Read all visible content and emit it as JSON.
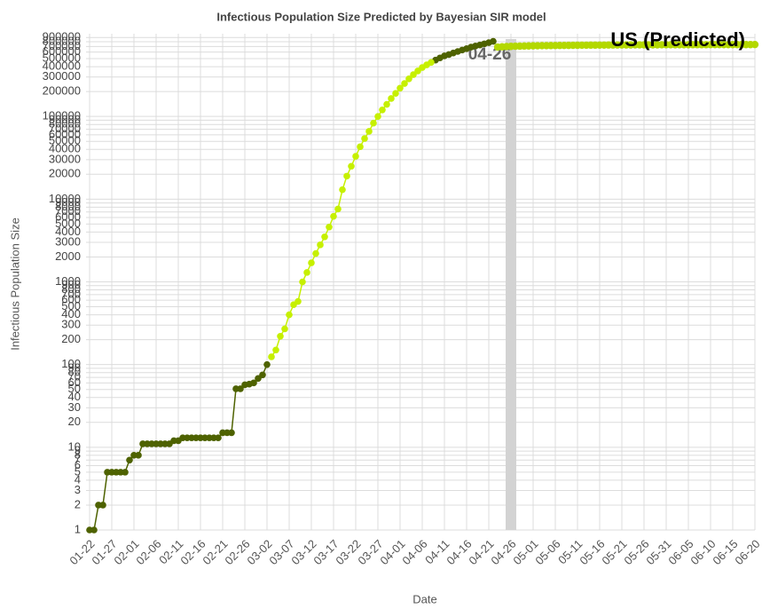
{
  "chart_data": {
    "type": "line",
    "title": "Infectious Population Size Predicted by Bayesian SIR model",
    "x_label": "Date",
    "y_label": "Infectious Population Size",
    "yscale": "log",
    "grid": true,
    "ylim": [
      1,
      1000000
    ],
    "yticks": [
      1,
      2,
      3,
      4,
      5,
      6,
      7,
      8,
      9,
      10,
      20,
      30,
      40,
      50,
      60,
      70,
      80,
      90,
      100,
      200,
      300,
      400,
      500,
      600,
      700,
      800,
      900,
      1000,
      2000,
      3000,
      4000,
      5000,
      6000,
      7000,
      8000,
      9000,
      10000,
      20000,
      30000,
      40000,
      50000,
      60000,
      70000,
      80000,
      90000,
      100000,
      200000,
      300000,
      400000,
      500000,
      600000,
      700000,
      800000,
      900000
    ],
    "categories": [
      "01-22",
      null,
      null,
      null,
      null,
      "01-27",
      null,
      null,
      null,
      null,
      "02-01",
      null,
      null,
      null,
      null,
      "02-06",
      null,
      null,
      null,
      null,
      "02-11",
      null,
      null,
      null,
      null,
      "02-16",
      null,
      null,
      null,
      null,
      "02-21",
      null,
      null,
      null,
      null,
      "02-26",
      null,
      null,
      null,
      null,
      "03-02",
      null,
      null,
      null,
      null,
      "03-07",
      null,
      null,
      null,
      null,
      "03-12",
      null,
      null,
      null,
      null,
      "03-17",
      null,
      null,
      null,
      null,
      "03-22",
      null,
      null,
      null,
      null,
      "03-27",
      null,
      null,
      null,
      null,
      "04-01",
      null,
      null,
      null,
      null,
      "04-06",
      null,
      null,
      null,
      null,
      "04-11",
      null,
      null,
      null,
      null,
      "04-16",
      null,
      null,
      null,
      null,
      "04-21",
      null,
      null,
      null,
      null,
      "04-26",
      null,
      null,
      null,
      null,
      "05-01",
      null,
      null,
      null,
      null,
      "05-06",
      null,
      null,
      null,
      null,
      "05-11",
      null,
      null,
      null,
      null,
      "05-16",
      null,
      null,
      null,
      null,
      "05-21",
      null,
      null,
      null,
      null,
      "05-26",
      null,
      null,
      null,
      null,
      "05-31",
      null,
      null,
      null,
      null,
      "06-05",
      null,
      null,
      null,
      null,
      "06-10",
      null,
      null,
      null,
      null,
      "06-15",
      null,
      null,
      null,
      null,
      "06-20"
    ],
    "series": [
      {
        "color": "#4e6200",
        "values": [
          1,
          1,
          2,
          2,
          5,
          5,
          5,
          5,
          5,
          7,
          8,
          8,
          11,
          11,
          11,
          11,
          11,
          11,
          11,
          12,
          12,
          13,
          13,
          13,
          13,
          13,
          13,
          13,
          13,
          13,
          15,
          15,
          15,
          51,
          51,
          57,
          58,
          60,
          68,
          75,
          100,
          null,
          null,
          null,
          null,
          null,
          null,
          null,
          null,
          null,
          null,
          null,
          null,
          null,
          null,
          null,
          null,
          null,
          null,
          null,
          null,
          null,
          null,
          null,
          null,
          null,
          null,
          null,
          null,
          null,
          null,
          null,
          null,
          null,
          null,
          null,
          null,
          null,
          480000,
          510000,
          540000,
          560000,
          585000,
          610000,
          635000,
          660000,
          690000,
          710000,
          730000,
          755000,
          780000,
          810000,
          null,
          null,
          null,
          null,
          null,
          null,
          null,
          null,
          null,
          null,
          null,
          null,
          null,
          null,
          null,
          null,
          null,
          null,
          null,
          null,
          null,
          null,
          null,
          null,
          null,
          null,
          null,
          null,
          null,
          null,
          null,
          null,
          null,
          null,
          null,
          null,
          null,
          null,
          null,
          null,
          null,
          null,
          null,
          null,
          null,
          null,
          null,
          null,
          null,
          null,
          null,
          null,
          null,
          null,
          null,
          null,
          null,
          null,
          null
        ]
      },
      {
        "color": "#c6f000",
        "values": [
          null,
          null,
          null,
          null,
          null,
          null,
          null,
          null,
          null,
          null,
          null,
          null,
          null,
          null,
          null,
          null,
          null,
          null,
          null,
          null,
          null,
          null,
          null,
          null,
          null,
          null,
          null,
          null,
          null,
          null,
          null,
          null,
          null,
          null,
          null,
          null,
          null,
          null,
          null,
          null,
          null,
          124,
          150,
          220,
          270,
          400,
          530,
          580,
          1000,
          1300,
          1700,
          2200,
          2800,
          3500,
          4600,
          6200,
          7600,
          13000,
          19000,
          25000,
          33000,
          43000,
          54000,
          66000,
          83000,
          100000,
          120000,
          140000,
          165000,
          190000,
          220000,
          250000,
          285000,
          320000,
          355000,
          390000,
          420000,
          450000,
          null,
          null,
          null,
          null,
          null,
          null,
          null,
          null,
          null,
          null,
          null,
          null,
          null,
          null,
          null,
          null,
          null,
          null,
          null,
          null,
          null,
          null,
          null,
          null,
          null,
          null,
          null,
          null,
          null,
          null,
          null,
          null,
          null,
          null,
          null,
          null,
          null,
          null,
          null,
          null,
          null,
          null,
          null,
          null,
          null,
          null,
          null,
          null,
          null,
          null,
          null,
          null,
          null,
          null,
          null,
          null,
          null,
          null,
          null,
          null,
          null,
          null,
          null,
          null,
          null,
          null,
          null,
          null,
          null,
          null,
          null,
          null,
          null
        ]
      },
      {
        "color": "#b3d800",
        "values": [
          null,
          null,
          null,
          null,
          null,
          null,
          null,
          null,
          null,
          null,
          null,
          null,
          null,
          null,
          null,
          null,
          null,
          null,
          null,
          null,
          null,
          null,
          null,
          null,
          null,
          null,
          null,
          null,
          null,
          null,
          null,
          null,
          null,
          null,
          null,
          null,
          null,
          null,
          null,
          null,
          null,
          null,
          null,
          null,
          null,
          null,
          null,
          null,
          null,
          null,
          null,
          null,
          null,
          null,
          null,
          null,
          null,
          null,
          null,
          null,
          null,
          null,
          null,
          null,
          null,
          null,
          null,
          null,
          null,
          null,
          null,
          null,
          null,
          null,
          null,
          null,
          null,
          null,
          null,
          null,
          null,
          null,
          null,
          null,
          null,
          null,
          null,
          null,
          null,
          null,
          null,
          null,
          690000,
          695000,
          700000,
          703000,
          706000,
          708000,
          710000,
          712000,
          714000,
          716000,
          717000,
          718000,
          719000,
          720000,
          721000,
          722000,
          723000,
          724000,
          725000,
          726000,
          727000,
          728000,
          728000,
          729000,
          729000,
          730000,
          730000,
          731000,
          731000,
          732000,
          732000,
          733000,
          733000,
          733000,
          734000,
          734000,
          734000,
          735000,
          735000,
          735000,
          736000,
          736000,
          736000,
          736000,
          737000,
          737000,
          737000,
          737000,
          738000,
          738000,
          738000,
          738000,
          738000,
          739000,
          739000,
          739000,
          739000,
          739000,
          740000
        ]
      }
    ],
    "highlight": "04-26",
    "highlight_color": "#d3d3d3",
    "annotation": "US (Predicted)"
  }
}
